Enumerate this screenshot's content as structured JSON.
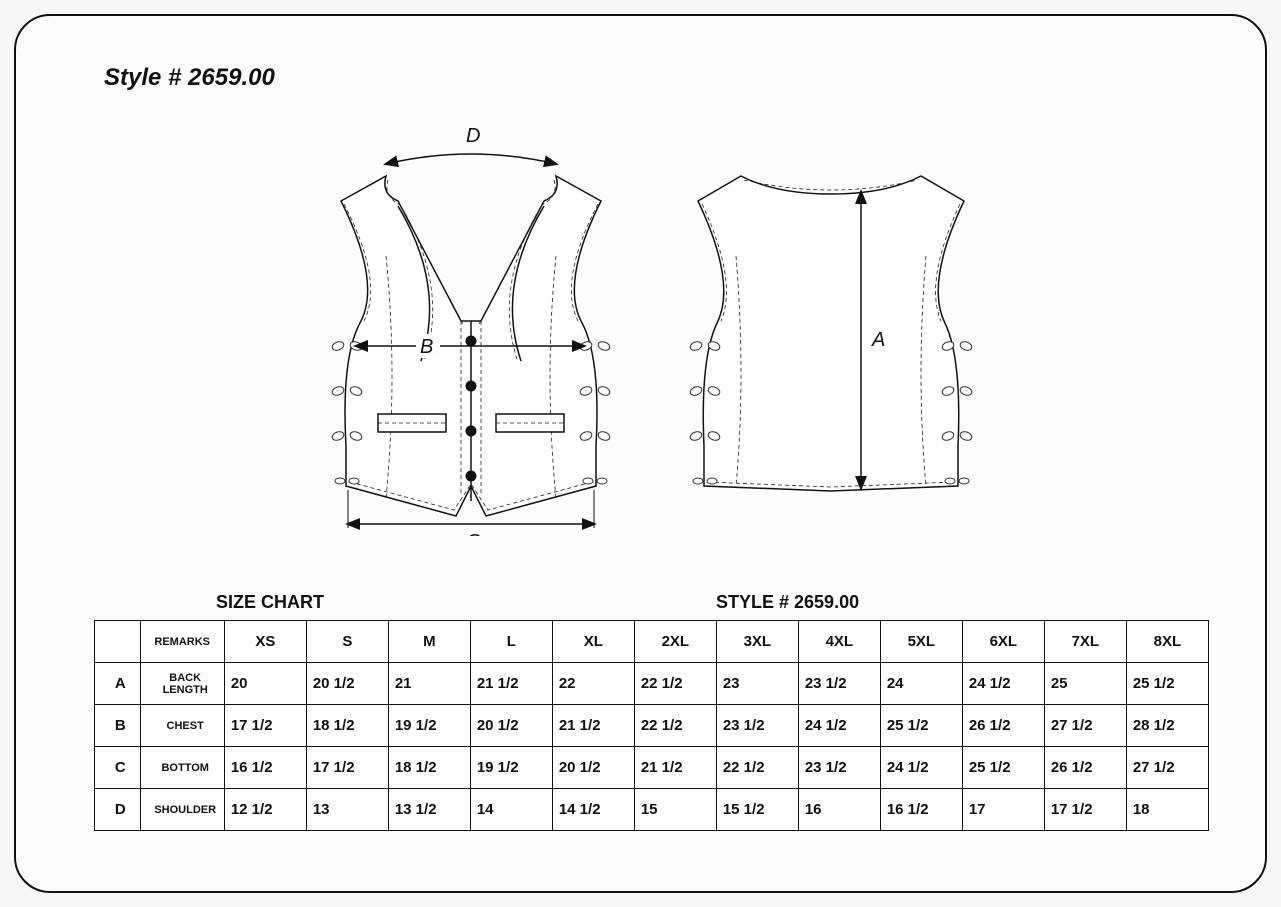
{
  "header": {
    "title": "Style # 2659.00"
  },
  "diagram": {
    "labels": {
      "A": "A",
      "B": "B",
      "C": "C",
      "D": "D"
    },
    "stroke": "#111111",
    "stitch_dash": "4 3",
    "button_color": "#111111",
    "background": "#ffffff"
  },
  "table_header": {
    "size_chart_label": "SIZE CHART",
    "style_label": "STYLE #  2659.00"
  },
  "chart": {
    "columns": [
      "",
      "REMARKS",
      "XS",
      "S",
      "M",
      "L",
      "XL",
      "2XL",
      "3XL",
      "4XL",
      "5XL",
      "6XL",
      "7XL",
      "8XL"
    ],
    "rows": [
      {
        "key": "A",
        "remark": "BACK LENGTH",
        "values": [
          "20",
          "20 1/2",
          "21",
          "21 1/2",
          "22",
          "22 1/2",
          "23",
          "23 1/2",
          "24",
          "24 1/2",
          "25",
          "25 1/2"
        ]
      },
      {
        "key": "B",
        "remark": "CHEST",
        "values": [
          "17 1/2",
          "18 1/2",
          "19 1/2",
          "20 1/2",
          "21 1/2",
          "22 1/2",
          "23 1/2",
          "24 1/2",
          "25 1/2",
          "26 1/2",
          "27 1/2",
          "28 1/2"
        ]
      },
      {
        "key": "C",
        "remark": "BOTTOM",
        "values": [
          "16 1/2",
          "17 1/2",
          "18 1/2",
          "19 1/2",
          "20 1/2",
          "21 1/2",
          "22 1/2",
          "23 1/2",
          "24 1/2",
          "25 1/2",
          "26 1/2",
          "27 1/2"
        ]
      },
      {
        "key": "D",
        "remark": "SHOULDER",
        "values": [
          "12 1/2",
          "13",
          "13 1/2",
          "14",
          "14 1/2",
          "15",
          "15 1/2",
          "16",
          "16 1/2",
          "17",
          "17 1/2",
          "18"
        ]
      }
    ],
    "border_color": "#111111",
    "cell_bg": "#fdfdfc",
    "header_fontsize": 15,
    "body_fontsize": 15,
    "remark_fontsize": 11
  }
}
